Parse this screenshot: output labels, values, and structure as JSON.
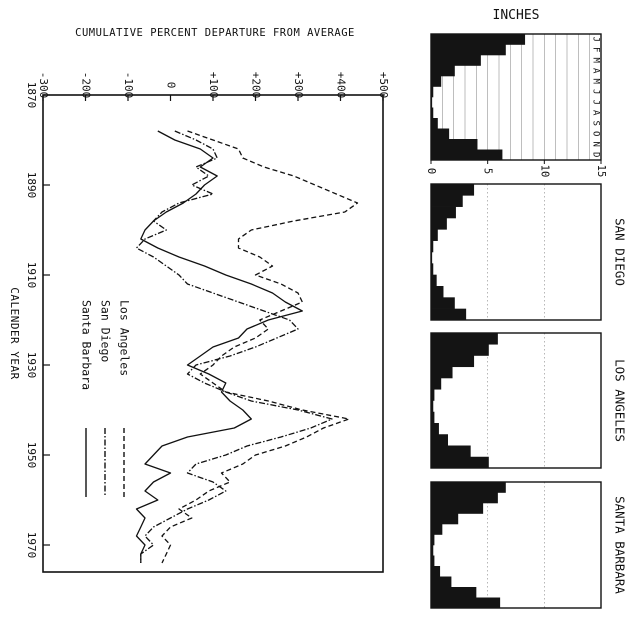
{
  "colors": {
    "ink": "#111111",
    "paper": "#ffffff",
    "bar": "#141414"
  },
  "chart_data": [
    {
      "type": "line",
      "title": "CUMULATIVE PERCENT DEPARTURE FROM AVERAGE",
      "xlabel": "CALENDER YEAR",
      "ylabel": "",
      "x_ticks": [
        1870,
        1890,
        1910,
        1930,
        1950,
        1970
      ],
      "y_ticks": [
        "-300",
        "-200",
        "-100",
        "0",
        "+100",
        "+200",
        "+300",
        "+400",
        "+500"
      ],
      "xlim": [
        1870,
        1976
      ],
      "ylim": [
        -300,
        500
      ],
      "grid": false,
      "legend_position": "upper-left (rotated)",
      "series": [
        {
          "name": "Los Angeles",
          "style": "dashed",
          "x": [
            1878,
            1880,
            1882,
            1884,
            1886,
            1888,
            1890,
            1892,
            1894,
            1896,
            1898,
            1900,
            1902,
            1904,
            1906,
            1908,
            1910,
            1912,
            1914,
            1916,
            1918,
            1920,
            1922,
            1924,
            1926,
            1928,
            1930,
            1932,
            1934,
            1936,
            1938,
            1940,
            1942,
            1944,
            1946,
            1948,
            1950,
            1952,
            1954,
            1956,
            1958,
            1960,
            1962,
            1964,
            1966,
            1968,
            1970,
            1972,
            1974
          ],
          "y": [
            40,
            100,
            160,
            170,
            220,
            290,
            340,
            390,
            440,
            410,
            290,
            190,
            160,
            160,
            210,
            240,
            200,
            260,
            300,
            310,
            260,
            210,
            230,
            200,
            150,
            120,
            100,
            70,
            100,
            130,
            230,
            310,
            420,
            360,
            320,
            270,
            200,
            170,
            120,
            140,
            90,
            60,
            20,
            50,
            0,
            -20,
            0,
            -10,
            -20
          ]
        },
        {
          "name": "San Diego",
          "style": "dash-dot",
          "x": [
            1878,
            1880,
            1882,
            1884,
            1886,
            1888,
            1890,
            1892,
            1894,
            1896,
            1898,
            1900,
            1902,
            1904,
            1906,
            1908,
            1910,
            1912,
            1914,
            1916,
            1918,
            1920,
            1922,
            1924,
            1926,
            1928,
            1930,
            1932,
            1934,
            1936,
            1938,
            1940,
            1942,
            1944,
            1946,
            1948,
            1950,
            1952,
            1954,
            1956,
            1958,
            1960,
            1962,
            1964,
            1966,
            1968,
            1970,
            1972,
            1974
          ],
          "y": [
            10,
            60,
            100,
            110,
            60,
            90,
            50,
            100,
            20,
            -20,
            -40,
            -10,
            -60,
            -80,
            -40,
            -10,
            20,
            40,
            100,
            160,
            220,
            280,
            300,
            250,
            200,
            140,
            60,
            40,
            80,
            130,
            190,
            300,
            380,
            330,
            260,
            180,
            130,
            60,
            40,
            100,
            130,
            90,
            40,
            0,
            -40,
            -60,
            -40,
            -70,
            -70
          ]
        },
        {
          "name": "Santa Barbara",
          "style": "solid",
          "x": [
            1878,
            1880,
            1882,
            1884,
            1886,
            1888,
            1890,
            1892,
            1894,
            1896,
            1898,
            1900,
            1902,
            1904,
            1906,
            1908,
            1910,
            1912,
            1914,
            1916,
            1918,
            1920,
            1922,
            1924,
            1926,
            1928,
            1930,
            1932,
            1934,
            1936,
            1938,
            1940,
            1942,
            1944,
            1946,
            1948,
            1950,
            1952,
            1954,
            1956,
            1958,
            1960,
            1962,
            1964,
            1966,
            1968,
            1970,
            1972,
            1974
          ],
          "y": [
            -30,
            10,
            70,
            100,
            70,
            110,
            80,
            60,
            30,
            -10,
            -40,
            -60,
            -70,
            -30,
            20,
            80,
            130,
            190,
            240,
            270,
            310,
            230,
            180,
            160,
            100,
            70,
            40,
            90,
            130,
            120,
            140,
            170,
            190,
            150,
            40,
            -20,
            -40,
            -60,
            0,
            -40,
            -60,
            -30,
            -80,
            -60,
            -70,
            -80,
            -60,
            -70,
            -70
          ]
        }
      ]
    },
    {
      "type": "bar",
      "title": "INCHES",
      "months": [
        "J",
        "F",
        "M",
        "A",
        "M",
        "J",
        "J",
        "A",
        "S",
        "O",
        "N",
        "D"
      ],
      "x_ticks": [
        "0",
        "5",
        "10",
        "15"
      ],
      "xlim": [
        0,
        15
      ],
      "panels": [
        {
          "name": "",
          "values": [
            8.3,
            6.6,
            4.4,
            2.1,
            0.9,
            0.2,
            0.1,
            0.2,
            0.6,
            1.6,
            4.1,
            6.3
          ]
        },
        {
          "name": "SAN DIEGO",
          "values": [
            3.8,
            2.8,
            2.2,
            1.4,
            0.6,
            0.2,
            0.1,
            0.2,
            0.5,
            1.1,
            2.1,
            3.1
          ]
        },
        {
          "name": "LOS ANGELES",
          "values": [
            5.9,
            5.1,
            3.8,
            1.9,
            0.9,
            0.3,
            0.2,
            0.3,
            0.7,
            1.5,
            3.5,
            5.1
          ]
        },
        {
          "name": "SANTA BARBARA",
          "values": [
            6.6,
            5.9,
            4.6,
            2.4,
            1.0,
            0.3,
            0.2,
            0.3,
            0.8,
            1.8,
            4.0,
            6.1
          ]
        }
      ]
    }
  ]
}
